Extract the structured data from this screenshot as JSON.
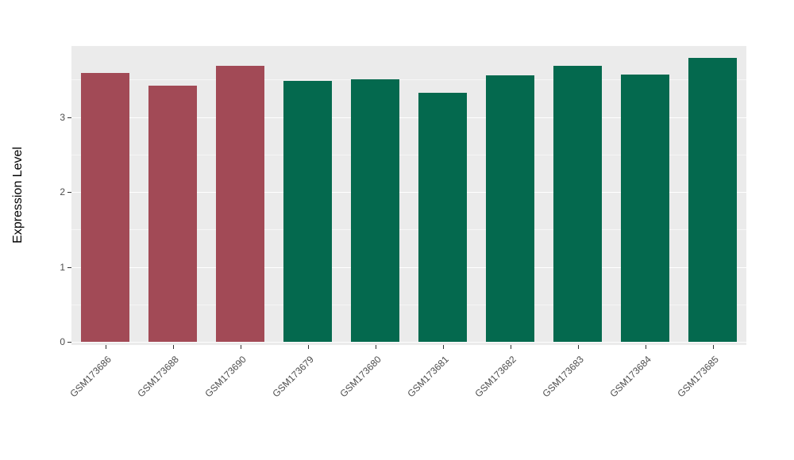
{
  "chart_data": {
    "type": "bar",
    "title": "",
    "xlabel": "",
    "ylabel": "Expression Level",
    "categories": [
      "GSM173686",
      "GSM173688",
      "GSM173690",
      "GSM173679",
      "GSM173680",
      "GSM173681",
      "GSM173682",
      "GSM173683",
      "GSM173684",
      "GSM173685"
    ],
    "values": [
      3.59,
      3.42,
      3.68,
      3.48,
      3.5,
      3.32,
      3.56,
      3.68,
      3.57,
      3.79
    ],
    "bar_colors": [
      "#A24A56",
      "#A24A56",
      "#A24A56",
      "#04694E",
      "#04694E",
      "#04694E",
      "#04694E",
      "#04694E",
      "#04694E",
      "#04694E"
    ],
    "ylim": [
      0,
      3.95
    ],
    "yticks": [
      0,
      1,
      2,
      3
    ],
    "minor_yticks": [
      0.5,
      1.5,
      2.5,
      3.5
    ],
    "grid": "on",
    "legend_position": "none",
    "panel_background": "#EBEBEB",
    "grid_color": "#FFFFFF",
    "tick_text_color": "#4D4D4D"
  }
}
